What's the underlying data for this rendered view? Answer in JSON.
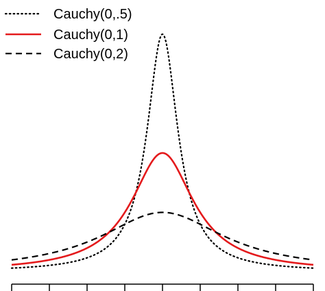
{
  "chart_data": {
    "type": "line",
    "title": "",
    "xlabel": "",
    "ylabel": "",
    "xlim": [
      -4,
      4
    ],
    "ylim": [
      0,
      0.64
    ],
    "x_ticks": [
      -4,
      -3,
      -2,
      -1,
      0,
      1,
      2,
      3,
      4
    ],
    "x_tick_labels_visible": false,
    "y_axis_visible": false,
    "grid": false,
    "legend_position": "top-left",
    "series": [
      {
        "name": "Cauchy(0,.5)",
        "distribution": "cauchy",
        "location": 0,
        "scale": 0.5,
        "line_style": "dotted",
        "color": "#000000",
        "peak_density": 0.6366
      },
      {
        "name": "Cauchy(0,1)",
        "distribution": "cauchy",
        "location": 0,
        "scale": 1,
        "line_style": "solid",
        "color": "#e41a1c",
        "peak_density": 0.3183
      },
      {
        "name": "Cauchy(0,2)",
        "distribution": "cauchy",
        "location": 0,
        "scale": 2,
        "line_style": "dashed",
        "color": "#000000",
        "peak_density": 0.1592
      }
    ]
  }
}
